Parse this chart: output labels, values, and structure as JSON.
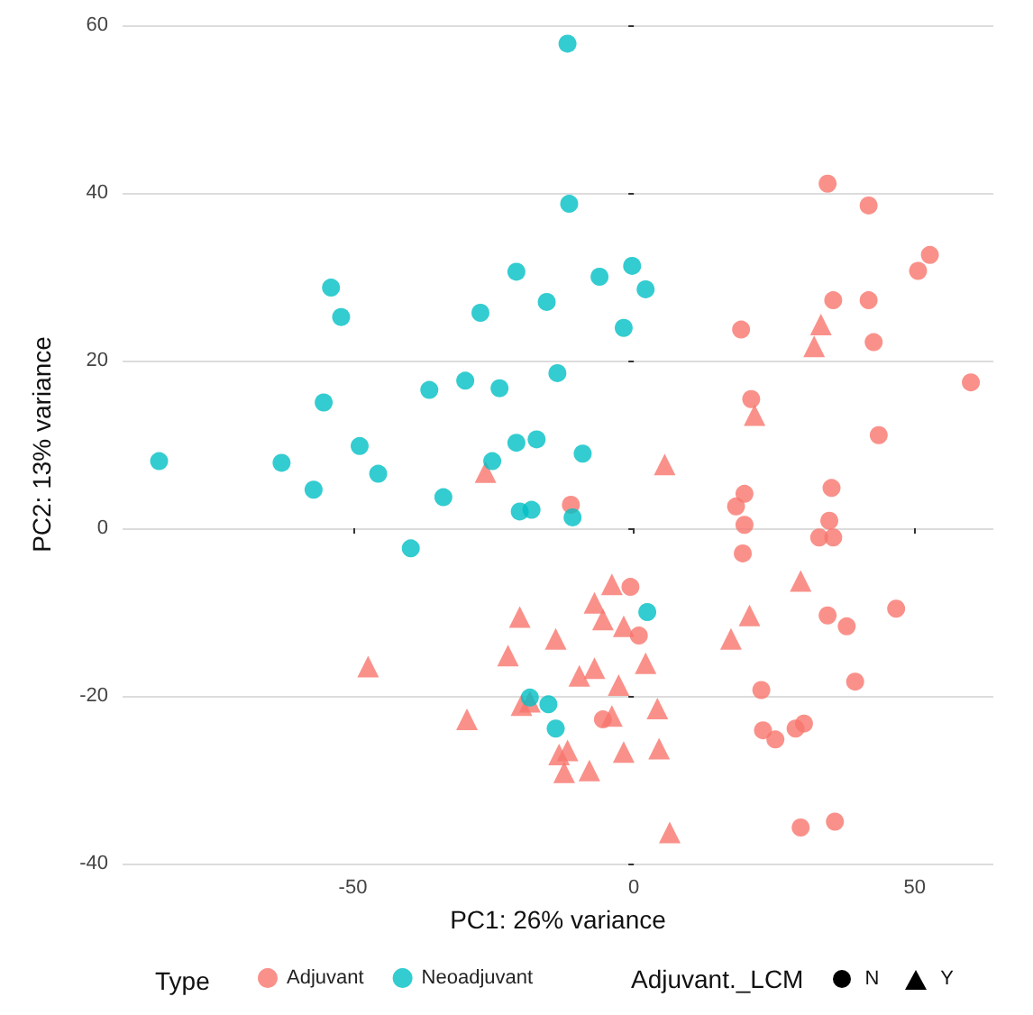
{
  "chart_data": {
    "type": "scatter",
    "xlabel": "PC1: 26% variance",
    "ylabel": "PC2: 13% variance",
    "xlim": [
      -91,
      64
    ],
    "ylim": [
      -40,
      60
    ],
    "xticks": [
      -50,
      0,
      50
    ],
    "yticks": [
      -40,
      -20,
      0,
      20,
      40,
      60
    ],
    "grid": "y",
    "legend": "bottom",
    "legend_title": "Type",
    "annotations": [
      "Adjuvant._LCM",
      "N",
      "Y"
    ],
    "series": [
      {
        "name": "Adjuvant",
        "color": "#f8766d",
        "marker": "circle",
        "x": [
          34.5,
          41.8,
          52.7,
          50.6,
          35.5,
          41.8,
          19.1,
          42.7,
          60,
          20.9,
          43.6,
          -11.2,
          -0.6,
          0.9,
          -5.5,
          35.2,
          19.7,
          18.2,
          19.7,
          34.8,
          33.0,
          35.5,
          19.4,
          34.5,
          37.9,
          46.7,
          39.4,
          22.7,
          23.0,
          25.2,
          28.8,
          30.3,
          29.7,
          35.8
        ],
        "values": [
          41.1,
          38.5,
          32.6,
          30.7,
          27.2,
          27.2,
          23.7,
          22.2,
          17.4,
          15.4,
          11.1,
          2.8,
          -7.0,
          -12.8,
          -22.8,
          4.8,
          4.1,
          2.6,
          0.4,
          0.9,
          -1.1,
          -1.1,
          -3.0,
          -10.4,
          -11.7,
          -9.6,
          -18.3,
          -19.3,
          -24.1,
          -25.2,
          -23.9,
          -23.3,
          -35.7,
          -35.0
        ]
      },
      {
        "color": "#f8766d",
        "marker": "triangle",
        "x": [
          33.3,
          32.1,
          21.5,
          -26.4,
          5.5,
          -3.9,
          -7.0,
          -5.5,
          -1.8,
          -20.3,
          -13.9,
          -22.4,
          -47.3,
          2.1,
          -9.7,
          -7.0,
          -2.7,
          4.2,
          -20.0,
          -18.5,
          -29.7,
          -3.9,
          -1.8,
          4.5,
          -13.3,
          -11.8,
          -12.4,
          -7.9,
          6.4,
          29.7,
          20.6,
          17.3
        ],
        "values": [
          24.3,
          21.7,
          13.5,
          6.7,
          7.6,
          -6.7,
          -8.9,
          -10.9,
          -11.7,
          -10.6,
          -13.2,
          -15.2,
          -16.5,
          -16.1,
          -17.6,
          -16.7,
          -18.7,
          -21.5,
          -21.1,
          -20.7,
          -22.8,
          -22.4,
          -26.7,
          -26.3,
          -27.0,
          -26.5,
          -29.1,
          -28.9,
          -36.3,
          -6.3,
          -10.4,
          -13.2
        ]
      },
      {
        "name": "Neoadjuvant",
        "color": "#00bfc4",
        "marker": "circle",
        "x": [
          -11.8,
          -11.5,
          -53.9,
          -52.1,
          -20.9,
          -27.3,
          -15.5,
          -13.6,
          -55.2,
          -36.4,
          -30.0,
          -23.9,
          -48.8,
          -20.9,
          -17.3,
          -84.5,
          -62.7,
          -25.2,
          -6.1,
          -0.3,
          2.1,
          -1.8,
          -9.1,
          -57.0,
          -45.5,
          -33.9,
          -20.3,
          -18.2,
          -10.9,
          -39.7,
          2.4,
          -18.5,
          -15.2,
          -13.9
        ],
        "values": [
          57.8,
          38.7,
          28.7,
          25.2,
          30.6,
          25.7,
          27.0,
          18.5,
          15.0,
          16.5,
          17.6,
          16.7,
          9.8,
          10.2,
          10.6,
          8.0,
          7.8,
          8.0,
          30.0,
          31.3,
          28.5,
          23.9,
          8.9,
          4.6,
          6.5,
          3.7,
          2.0,
          2.2,
          1.3,
          -2.4,
          -10.0,
          -20.2,
          -21.0,
          -23.9
        ]
      }
    ]
  }
}
